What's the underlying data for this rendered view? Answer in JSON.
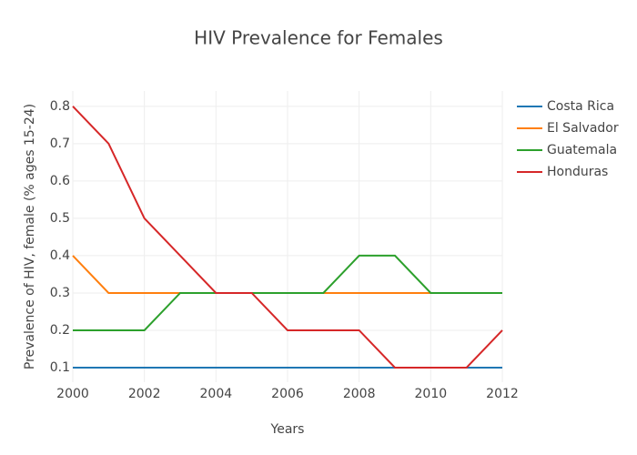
{
  "chart_data": {
    "type": "line",
    "title": "HIV Prevalence for Females",
    "x_label": "Years",
    "y_label": "Prevalence of HIV, female (% ages 15-24)",
    "x": [
      2000,
      2001,
      2002,
      2003,
      2004,
      2005,
      2006,
      2007,
      2008,
      2009,
      2010,
      2011,
      2012
    ],
    "series": [
      {
        "name": "Costa Rica",
        "color": "#1f77b4",
        "values": [
          0.1,
          0.1,
          0.1,
          0.1,
          0.1,
          0.1,
          0.1,
          0.1,
          0.1,
          0.1,
          0.1,
          0.1,
          0.1
        ]
      },
      {
        "name": "El Salvador",
        "color": "#ff7f0e",
        "values": [
          0.4,
          0.3,
          0.3,
          0.3,
          0.3,
          0.3,
          0.3,
          0.3,
          0.3,
          0.3,
          0.3,
          0.3,
          0.3
        ]
      },
      {
        "name": "Guatemala",
        "color": "#2ca02c",
        "values": [
          0.2,
          0.2,
          0.2,
          0.3,
          0.3,
          0.3,
          0.3,
          0.3,
          0.4,
          0.4,
          0.3,
          0.3,
          0.3
        ]
      },
      {
        "name": "Honduras",
        "color": "#d62728",
        "values": [
          0.8,
          0.7,
          0.5,
          0.4,
          0.3,
          0.3,
          0.2,
          0.2,
          0.2,
          0.1,
          0.1,
          0.1,
          0.2
        ]
      }
    ],
    "xlim": [
      2000,
      2012
    ],
    "xticks": [
      2000,
      2002,
      2004,
      2006,
      2008,
      2010,
      2012
    ],
    "ylim": [
      0.061,
      0.841
    ],
    "yticks": [
      0.1,
      0.2,
      0.3,
      0.4,
      0.5,
      0.6,
      0.7,
      0.8
    ],
    "grid": true,
    "legend": "right"
  }
}
